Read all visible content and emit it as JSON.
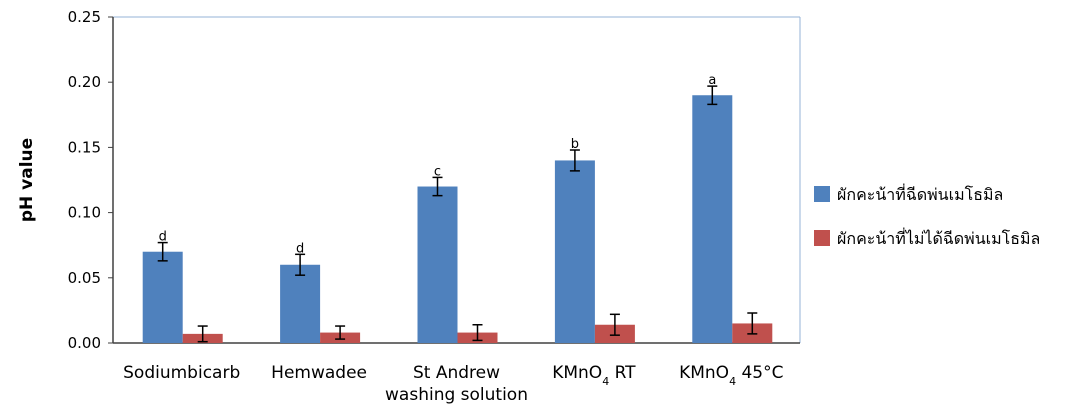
{
  "chart_data": {
    "type": "bar",
    "ylabel": "pH value",
    "ylim": [
      0,
      0.25
    ],
    "yticks": [
      "0.00",
      "0.05",
      "0.10",
      "0.15",
      "0.20",
      "0.25"
    ],
    "categories": [
      [
        "Sodiumbicarb"
      ],
      [
        "Hemwadee"
      ],
      [
        "St  Andrew",
        "washing solution"
      ],
      [
        "KMnO|4| RT"
      ],
      [
        "KMnO|4| 45°C"
      ]
    ],
    "series": [
      {
        "name": "ผักคะน้าที่ฉีดพ่นเมโธมิล",
        "color": "#4F81BD",
        "values": [
          0.07,
          0.06,
          0.12,
          0.14,
          0.19
        ],
        "errors": [
          0.007,
          0.008,
          0.007,
          0.008,
          0.007
        ],
        "labels": [
          "d",
          "d",
          "c",
          "b",
          "a"
        ]
      },
      {
        "name": "ผักคะน้าที่ไม่ได้ฉีดพ่นเมโธมิล",
        "color": "#C0504D",
        "values": [
          0.007,
          0.008,
          0.008,
          0.014,
          0.015
        ],
        "errors": [
          0.006,
          0.005,
          0.006,
          0.008,
          0.008
        ],
        "labels": [
          "",
          "",
          "",
          "",
          ""
        ]
      }
    ],
    "legend": "right",
    "grid": false
  }
}
